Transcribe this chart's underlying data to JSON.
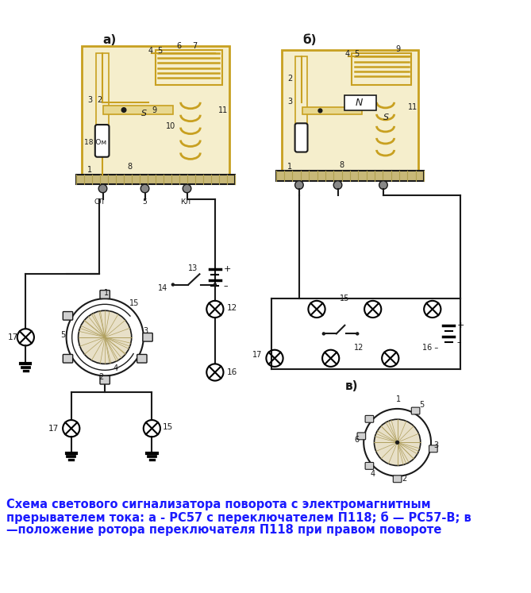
{
  "title_lines": [
    "Схема светового сигнализатора поворота с электромагнитным",
    "прерывателем тока: а - РС57 с переключателем П118; б — РС57-В; в",
    "—положение ротора переключателя П118 при правом повороте"
  ],
  "title_fontsize": 10.5,
  "title_color": "#1a1aff",
  "bg_color": "#ffffff",
  "gold": "#c8a020",
  "gold_light": "#e8d890",
  "gold_fill": "#f5eecc",
  "black": "#1a1a1a",
  "gray": "#888888",
  "base_color": "#c8b060",
  "hatch_color": "#b8a050",
  "fig_width": 6.69,
  "fig_height": 7.47,
  "dpi": 100
}
